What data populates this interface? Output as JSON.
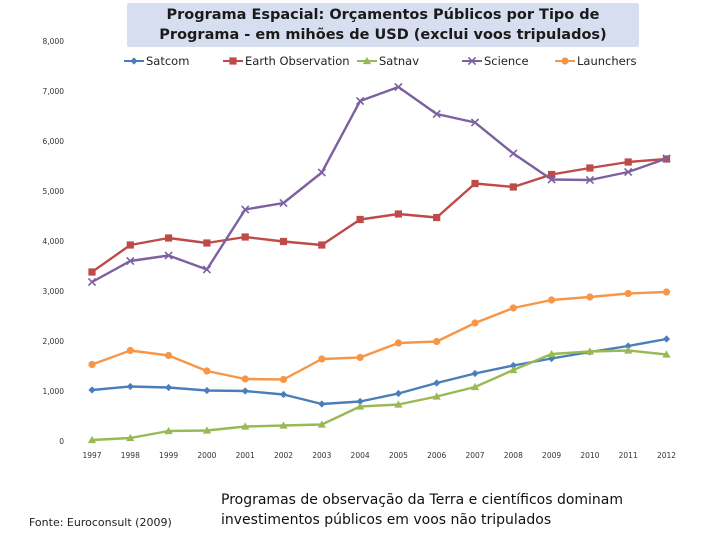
{
  "chart_data": {
    "type": "line",
    "title": "Programa Espacial: Orçamentos Públicos por Tipo de Programa - em mihões de USD (exclui voos tripulados)",
    "xlabel": "",
    "ylabel": "",
    "x": [
      "1997",
      "1998",
      "1999",
      "2000",
      "2001",
      "2002",
      "2003",
      "2004",
      "2005",
      "2006",
      "2007",
      "2008",
      "2009",
      "2010",
      "2011",
      "2012"
    ],
    "ylim": [
      0,
      8000
    ],
    "yticks": [
      0,
      1000,
      2000,
      3000,
      4000,
      5000,
      6000,
      7000,
      8000
    ],
    "ytick_labels": [
      "0",
      "1,000",
      "2,000",
      "3,000",
      "4,000",
      "5,000",
      "6,000",
      "7,000",
      "8,000"
    ],
    "grid": false,
    "legend_position": "top",
    "series": [
      {
        "name": "Satcom",
        "color": "#4a7ebb",
        "marker": "diamond",
        "values": [
          1020,
          1090,
          1070,
          1010,
          1000,
          930,
          740,
          790,
          950,
          1160,
          1350,
          1510,
          1650,
          1780,
          1900,
          2040
        ]
      },
      {
        "name": "Earth Observation",
        "color": "#be4b48",
        "marker": "square",
        "values": [
          3380,
          3920,
          4060,
          3960,
          4080,
          3990,
          3920,
          4430,
          4540,
          4470,
          5150,
          5080,
          5330,
          5460,
          5580,
          5640
        ]
      },
      {
        "name": "Satnav",
        "color": "#98b954",
        "marker": "triangle",
        "values": [
          20,
          60,
          200,
          210,
          290,
          310,
          330,
          690,
          730,
          890,
          1080,
          1420,
          1740,
          1790,
          1810,
          1730
        ]
      },
      {
        "name": "Science",
        "color": "#7d60a0",
        "marker": "x",
        "values": [
          3180,
          3600,
          3710,
          3430,
          4630,
          4760,
          5370,
          6800,
          7080,
          6540,
          6370,
          5750,
          5230,
          5220,
          5380,
          5650
        ]
      },
      {
        "name": "Launchers",
        "color": "#f79646",
        "marker": "circle",
        "values": [
          1530,
          1810,
          1710,
          1400,
          1240,
          1230,
          1640,
          1670,
          1960,
          1990,
          2360,
          2660,
          2820,
          2880,
          2950,
          2980
        ]
      }
    ]
  },
  "source_note": "Fonte: Euroconsult (2009)",
  "conclusion": "Programas de observação da Terra e científicos dominam investimentos públicos em voos não tripulados"
}
